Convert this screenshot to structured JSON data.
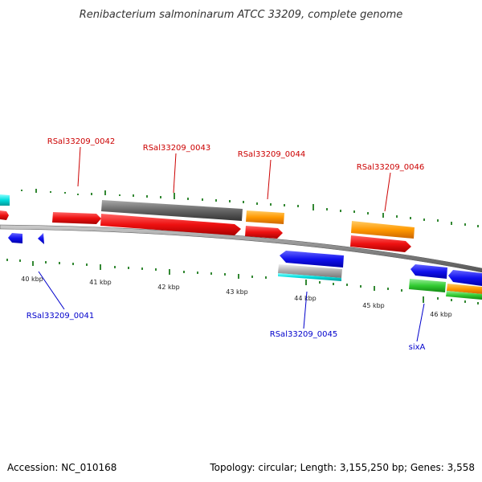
{
  "title": "Renibacterium salmoninarum ATCC 33209, complete genome",
  "footer": {
    "accession": "Accession: NC_010168",
    "summary": "Topology: circular; Length: 3,155,250 bp; Genes: 3,558"
  },
  "axis": {
    "tick_labels": [
      "40 kbp",
      "41 kbp",
      "42 kbp",
      "43 kbp",
      "44 kbp",
      "45 kbp",
      "46 kbp"
    ]
  },
  "gene_labels": {
    "forward": [
      "RSal33209_0042",
      "RSal33209_0043",
      "RSal33209_0044",
      "RSal33209_0046"
    ],
    "reverse": [
      "RSal33209_0041",
      "RSal33209_0045",
      "sixA"
    ]
  },
  "colors": {
    "cds_forward": "#ee1111",
    "cds_reverse": "#1111ee",
    "rrna_like": "#ff9900",
    "pseudo": "#666666",
    "cyan_feature": "#00dddd",
    "green_feature": "#33cc33",
    "backbone": "#888888",
    "gc_tick": "#338833"
  }
}
